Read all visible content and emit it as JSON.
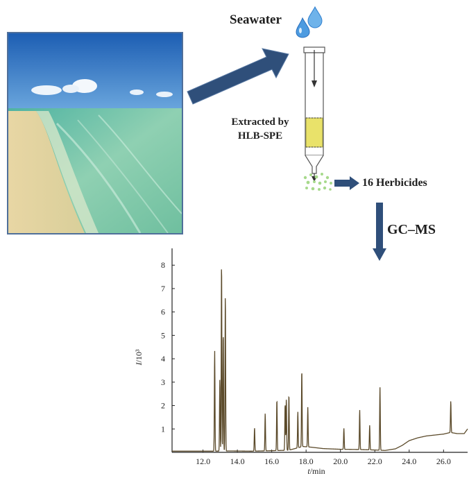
{
  "labels": {
    "seawater": "Seawater",
    "extracted_line1": "Extracted by",
    "extracted_line2": "HLB-SPE",
    "herbicides": "16 Herbicides",
    "gcms": "GC–MS"
  },
  "colors": {
    "arrow_blue": "#2f4f7a",
    "sorbent_yellow": "#e9e26a",
    "droplet_blue": "#3d8fd6",
    "particle_green": "#a7d98c",
    "trace": "#5b4a2a"
  },
  "chart_data": {
    "type": "line",
    "xlabel_italic": "t",
    "xlabel_unit": "/min",
    "ylabel_italic": "I",
    "ylabel_unit": "/10³",
    "xlim": [
      10.2,
      27.4
    ],
    "ylim": [
      0,
      8.6
    ],
    "x_ticks": [
      "12.0",
      "14.0",
      "16.0",
      "18.0",
      "20.0",
      "22.0",
      "24.0",
      "26.0"
    ],
    "y_ticks": [
      "1",
      "2",
      "3",
      "4",
      "5",
      "6",
      "7",
      "8"
    ],
    "baseline": [
      [
        10.2,
        0.05
      ],
      [
        12.5,
        0.05
      ],
      [
        13.6,
        0.06
      ],
      [
        14.8,
        0.05
      ],
      [
        16.0,
        0.07
      ],
      [
        17.0,
        0.09
      ],
      [
        17.8,
        0.25
      ],
      [
        18.3,
        0.22
      ],
      [
        19.0,
        0.16
      ],
      [
        20.0,
        0.13
      ],
      [
        21.0,
        0.12
      ],
      [
        22.0,
        0.1
      ],
      [
        22.6,
        0.08
      ],
      [
        23.2,
        0.15
      ],
      [
        23.6,
        0.3
      ],
      [
        24.0,
        0.5
      ],
      [
        24.5,
        0.62
      ],
      [
        25.0,
        0.7
      ],
      [
        25.5,
        0.74
      ],
      [
        26.0,
        0.78
      ],
      [
        26.4,
        0.85
      ],
      [
        26.8,
        0.8
      ],
      [
        27.2,
        0.8
      ],
      [
        27.4,
        1.0
      ]
    ],
    "peaks": [
      [
        12.68,
        4.3
      ],
      [
        12.98,
        3.1
      ],
      [
        13.08,
        8.1
      ],
      [
        13.18,
        5.1
      ],
      [
        13.3,
        6.7
      ],
      [
        15.0,
        1.0
      ],
      [
        15.62,
        1.6
      ],
      [
        16.3,
        2.2
      ],
      [
        16.78,
        2.0
      ],
      [
        16.85,
        2.2
      ],
      [
        17.0,
        2.4
      ],
      [
        17.52,
        1.55
      ],
      [
        17.75,
        3.3
      ],
      [
        18.1,
        1.7
      ],
      [
        20.2,
        0.9
      ],
      [
        21.12,
        1.7
      ],
      [
        21.7,
        1.05
      ],
      [
        22.3,
        2.7
      ],
      [
        26.42,
        1.35
      ]
    ]
  }
}
